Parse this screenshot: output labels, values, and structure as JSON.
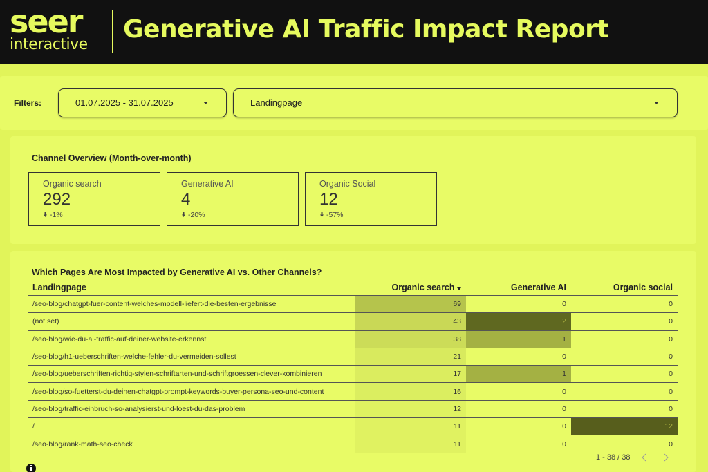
{
  "header": {
    "logo_top": "seer",
    "logo_bottom": "interactive",
    "title": "Generative AI Traffic Impact Report"
  },
  "filters": {
    "label": "Filters:",
    "date_range": "01.07.2025 - 31.07.2025",
    "dimension": "Landingpage"
  },
  "overview": {
    "title": "Channel Overview (Month-over-month)",
    "cards": [
      {
        "name": "Organic search",
        "value": 292,
        "change": "-1%"
      },
      {
        "name": "Generative AI",
        "value": 4,
        "change": "-20%"
      },
      {
        "name": "Organic Social",
        "value": 12,
        "change": "-57%"
      }
    ]
  },
  "table": {
    "title": "Which Pages Are Most Impacted by Generative AI vs. Other Channels?",
    "columns": [
      "Landingpage",
      "Organic search",
      "Generative AI",
      "Organic social"
    ],
    "rows": [
      [
        "/seo-blog/chatgpt-fuer-content-welches-modell-liefert-die-besten-ergebnisse",
        69,
        0,
        0
      ],
      [
        "(not set)",
        43,
        2,
        0
      ],
      [
        "/seo-blog/wie-du-ai-traffic-auf-deiner-website-erkennst",
        38,
        1,
        0
      ],
      [
        "/seo-blog/h1-ueberschriften-welche-fehler-du-vermeiden-sollest",
        21,
        0,
        0
      ],
      [
        "/seo-blog/ueberschriften-richtig-stylen-schriftarten-und-schriftgroessen-clever-kombinieren",
        17,
        1,
        0
      ],
      [
        "/seo-blog/so-fuetterst-du-deinen-chatgpt-prompt-keywords-buyer-persona-seo-und-content",
        16,
        0,
        0
      ],
      [
        "/seo-blog/traffic-einbruch-so-analysierst-und-loest-du-das-problem",
        12,
        0,
        0
      ],
      [
        "/",
        11,
        0,
        12
      ],
      [
        "/seo-blog/rank-math-seo-check",
        11,
        0,
        0
      ]
    ],
    "pagination": "1 - 38 / 38"
  }
}
